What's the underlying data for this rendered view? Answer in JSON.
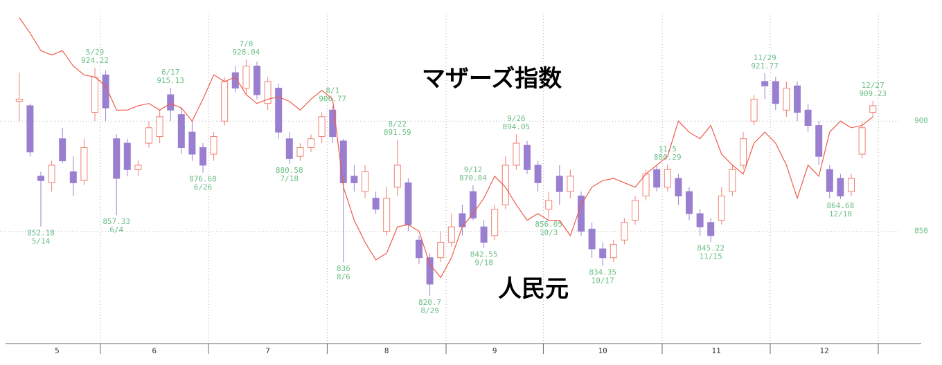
{
  "chart_data": {
    "type": "candlestick",
    "candle_name": "マザーズ指数",
    "line_name": "人民元",
    "up_color": "#f08070",
    "down_color": "#9a7fd0",
    "line_color": "#f05a4a",
    "label_color": "#6cbf86",
    "ylim": [
      799,
      955
    ],
    "yticks": [
      850,
      900
    ],
    "grid": true,
    "months": [
      {
        "label": "5",
        "candles": [
          {
            "o": 909,
            "h": 922,
            "l": 900,
            "c": 910,
            "yuan": 947
          },
          {
            "o": 907,
            "h": 908,
            "l": 884,
            "c": 886,
            "yuan": 940
          },
          {
            "o": 875,
            "h": 877,
            "l": 852.18,
            "c": 873,
            "yuan": 932,
            "low_date": "5/14"
          },
          {
            "o": 872,
            "h": 882,
            "l": 868,
            "c": 880,
            "yuan": 930
          },
          {
            "o": 892,
            "h": 897,
            "l": 881,
            "c": 882,
            "yuan": 932
          },
          {
            "o": 877,
            "h": 884,
            "l": 866,
            "c": 872,
            "yuan": 925
          },
          {
            "o": 873,
            "h": 892,
            "l": 871,
            "c": 888,
            "yuan": 921
          },
          {
            "o": 904,
            "h": 924.22,
            "l": 900,
            "c": 920,
            "yuan": 920,
            "high_date": "5/29"
          }
        ]
      },
      {
        "label": "6",
        "candles": [
          {
            "o": 921,
            "h": 923,
            "l": 900,
            "c": 906,
            "yuan": 916
          },
          {
            "o": 892,
            "h": 894,
            "l": 857.33,
            "c": 874,
            "yuan": 905,
            "low_date": "6/4"
          },
          {
            "o": 890,
            "h": 892,
            "l": 875,
            "c": 878,
            "yuan": 905
          },
          {
            "o": 878,
            "h": 882,
            "l": 875,
            "c": 880,
            "yuan": 907
          },
          {
            "o": 890,
            "h": 900,
            "l": 888,
            "c": 897,
            "yuan": 908
          },
          {
            "o": 893,
            "h": 905,
            "l": 890,
            "c": 902,
            "yuan": 905
          },
          {
            "o": 912,
            "h": 915.13,
            "l": 900,
            "c": 905,
            "yuan": 908,
            "high_date": "6/17"
          },
          {
            "o": 903,
            "h": 906,
            "l": 885,
            "c": 888,
            "yuan": 906
          },
          {
            "o": 895,
            "h": 900,
            "l": 882,
            "c": 885,
            "yuan": 900
          },
          {
            "o": 888,
            "h": 890,
            "l": 876.68,
            "c": 880,
            "yuan": 910,
            "low_date": "6/26"
          }
        ]
      },
      {
        "label": "7",
        "candles": [
          {
            "o": 885,
            "h": 895,
            "l": 882,
            "c": 893,
            "yuan": 921
          },
          {
            "o": 900,
            "h": 920,
            "l": 898,
            "c": 918,
            "yuan": 918
          },
          {
            "o": 922,
            "h": 925,
            "l": 913,
            "c": 915,
            "yuan": 920
          },
          {
            "o": 915,
            "h": 928.04,
            "l": 912,
            "c": 925,
            "yuan": 912,
            "high_date": "7/8"
          },
          {
            "o": 925,
            "h": 927,
            "l": 910,
            "c": 912,
            "yuan": 908
          },
          {
            "o": 908,
            "h": 920,
            "l": 905,
            "c": 918,
            "yuan": 910
          },
          {
            "o": 915,
            "h": 917,
            "l": 892,
            "c": 895,
            "yuan": 911
          },
          {
            "o": 892,
            "h": 895,
            "l": 880.58,
            "c": 883,
            "yuan": 909,
            "low_date": "7/18"
          },
          {
            "o": 884,
            "h": 890,
            "l": 882,
            "c": 888,
            "yuan": 905
          },
          {
            "o": 888,
            "h": 894,
            "l": 886,
            "c": 892,
            "yuan": 910
          },
          {
            "o": 893,
            "h": 904,
            "l": 890,
            "c": 902,
            "yuan": 914
          }
        ]
      },
      {
        "label": "8",
        "candles": [
          {
            "o": 905,
            "h": 906.77,
            "l": 890,
            "c": 893,
            "yuan": 910,
            "high_date": "8/1"
          },
          {
            "o": 891,
            "h": 892,
            "l": 836.0,
            "c": 872,
            "yuan": 870,
            "low_date": "8/6"
          },
          {
            "o": 875,
            "h": 880,
            "l": 868,
            "c": 872,
            "yuan": 855
          },
          {
            "o": 868,
            "h": 880,
            "l": 865,
            "c": 877,
            "yuan": 845
          },
          {
            "o": 865,
            "h": 868,
            "l": 858,
            "c": 860,
            "yuan": 837
          },
          {
            "o": 850,
            "h": 870,
            "l": 848,
            "c": 865,
            "yuan": 840
          },
          {
            "o": 870,
            "h": 891.59,
            "l": 866,
            "c": 880,
            "yuan": 852,
            "high_date": "8/22"
          },
          {
            "o": 872,
            "h": 874,
            "l": 850,
            "c": 853,
            "yuan": 853
          },
          {
            "o": 846,
            "h": 848,
            "l": 835,
            "c": 838,
            "yuan": 850
          },
          {
            "o": 838,
            "h": 840,
            "l": 820.7,
            "c": 826,
            "yuan": 835,
            "low_date": "8/29"
          },
          {
            "o": 838,
            "h": 850,
            "l": 836,
            "c": 845,
            "yuan": 829
          }
        ]
      },
      {
        "label": "9",
        "candles": [
          {
            "o": 845,
            "h": 858,
            "l": 843,
            "c": 852,
            "yuan": 838
          },
          {
            "o": 858,
            "h": 862,
            "l": 848,
            "c": 852,
            "yuan": 852
          },
          {
            "o": 868,
            "h": 870.84,
            "l": 855,
            "c": 856,
            "yuan": 858,
            "high_date": "9/12"
          },
          {
            "o": 852,
            "h": 855,
            "l": 842.55,
            "c": 845,
            "yuan": 865,
            "low_date": "9/18"
          },
          {
            "o": 848,
            "h": 862,
            "l": 846,
            "c": 860,
            "yuan": 875
          },
          {
            "o": 862,
            "h": 884,
            "l": 860,
            "c": 880,
            "yuan": 870
          },
          {
            "o": 880,
            "h": 894.05,
            "l": 878,
            "c": 890,
            "yuan": 862,
            "high_date": "9/26"
          },
          {
            "o": 889,
            "h": 891,
            "l": 876,
            "c": 878,
            "yuan": 855
          },
          {
            "o": 880,
            "h": 882,
            "l": 868,
            "c": 872,
            "yuan": 858
          }
        ]
      },
      {
        "label": "10",
        "candles": [
          {
            "o": 860,
            "h": 868,
            "l": 856.05,
            "c": 864,
            "yuan": 855,
            "low_date": "10/3"
          },
          {
            "o": 875,
            "h": 880,
            "l": 862,
            "c": 868,
            "yuan": 855
          },
          {
            "o": 868,
            "h": 878,
            "l": 865,
            "c": 875,
            "yuan": 848
          },
          {
            "o": 866,
            "h": 868,
            "l": 848,
            "c": 850,
            "yuan": 862
          },
          {
            "o": 851,
            "h": 854,
            "l": 838,
            "c": 842,
            "yuan": 870
          },
          {
            "o": 842,
            "h": 845,
            "l": 834.35,
            "c": 838,
            "yuan": 873,
            "low_date": "10/17"
          },
          {
            "o": 838,
            "h": 846,
            "l": 836,
            "c": 844,
            "yuan": 874
          },
          {
            "o": 846,
            "h": 856,
            "l": 844,
            "c": 854,
            "yuan": 872
          },
          {
            "o": 855,
            "h": 866,
            "l": 853,
            "c": 864,
            "yuan": 870
          },
          {
            "o": 866,
            "h": 878,
            "l": 864,
            "c": 876,
            "yuan": 876
          },
          {
            "o": 878,
            "h": 880,
            "l": 868,
            "c": 870,
            "yuan": 880
          }
        ]
      },
      {
        "label": "11",
        "candles": [
          {
            "o": 870,
            "h": 880.29,
            "l": 868,
            "c": 878,
            "yuan": 884,
            "high_date": "11/5"
          },
          {
            "o": 874,
            "h": 876,
            "l": 862,
            "c": 866,
            "yuan": 900
          },
          {
            "o": 868,
            "h": 870,
            "l": 855,
            "c": 858,
            "yuan": 895
          },
          {
            "o": 858,
            "h": 860,
            "l": 848,
            "c": 852,
            "yuan": 892
          },
          {
            "o": 854,
            "h": 856,
            "l": 845.22,
            "c": 848,
            "yuan": 898,
            "low_date": "11/15"
          },
          {
            "o": 855,
            "h": 870,
            "l": 853,
            "c": 866,
            "yuan": 885
          },
          {
            "o": 868,
            "h": 880,
            "l": 866,
            "c": 878,
            "yuan": 880
          },
          {
            "o": 880,
            "h": 895,
            "l": 878,
            "c": 892,
            "yuan": 876
          },
          {
            "o": 900,
            "h": 912,
            "l": 898,
            "c": 910,
            "yuan": 890
          },
          {
            "o": 918,
            "h": 921.77,
            "l": 910,
            "c": 916,
            "yuan": 895,
            "high_date": "11/29"
          }
        ]
      },
      {
        "label": "12",
        "candles": [
          {
            "o": 918,
            "h": 920,
            "l": 905,
            "c": 908,
            "yuan": 890
          },
          {
            "o": 905,
            "h": 918,
            "l": 902,
            "c": 915,
            "yuan": 880
          },
          {
            "o": 916,
            "h": 918,
            "l": 900,
            "c": 904,
            "yuan": 865
          },
          {
            "o": 905,
            "h": 908,
            "l": 895,
            "c": 898,
            "yuan": 880
          },
          {
            "o": 898,
            "h": 900,
            "l": 880,
            "c": 884,
            "yuan": 875
          },
          {
            "o": 878,
            "h": 880,
            "l": 865,
            "c": 868,
            "yuan": 895
          },
          {
            "o": 874,
            "h": 876,
            "l": 864.68,
            "c": 866,
            "yuan": 900,
            "low_date": "12/18"
          },
          {
            "o": 868,
            "h": 876,
            "l": 866,
            "c": 874,
            "yuan": 897
          },
          {
            "o": 885,
            "h": 900,
            "l": 883,
            "c": 897,
            "yuan": 898
          },
          {
            "o": 904,
            "h": 909.23,
            "l": 902,
            "c": 907,
            "yuan": 902,
            "high_date": "12/27"
          }
        ]
      }
    ]
  }
}
